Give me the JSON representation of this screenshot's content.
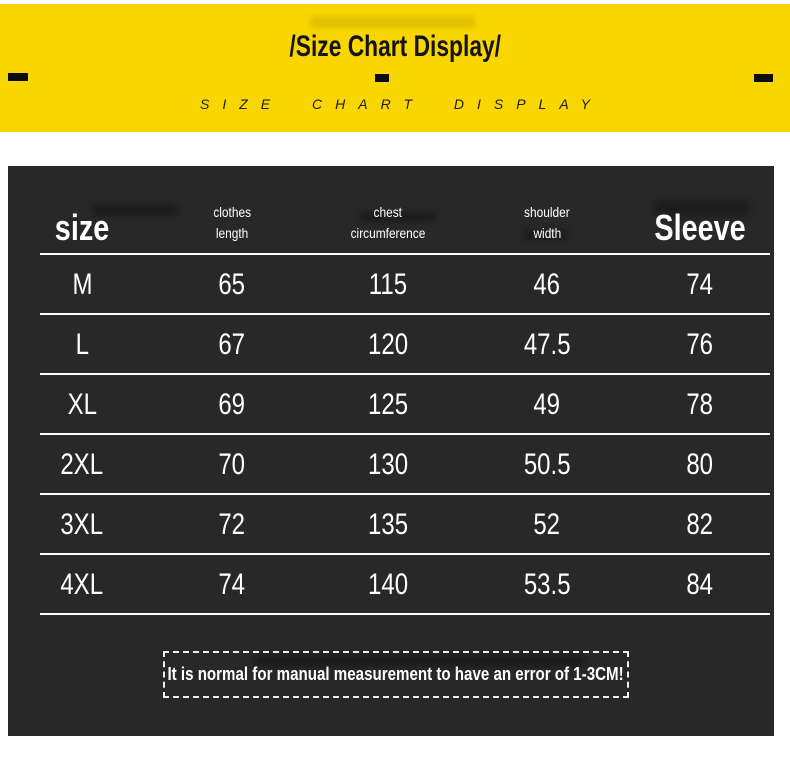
{
  "banner": {
    "title": "/Size Chart Display/",
    "subtitle": "SIZE CHART DISPLAY",
    "background_color": "#FAD601",
    "text_color": "#141414"
  },
  "table": {
    "background_color": "#282828",
    "text_color": "#FFFFFF",
    "headers": [
      [
        "size"
      ],
      [
        "clothes",
        "length"
      ],
      [
        "chest",
        "circumference"
      ],
      [
        "shoulder",
        "width"
      ],
      [
        "Sleeve"
      ]
    ],
    "rows": [
      [
        "M",
        "65",
        "115",
        "46",
        "74"
      ],
      [
        "L",
        "67",
        "120",
        "47.5",
        "76"
      ],
      [
        "XL",
        "69",
        "125",
        "49",
        "78"
      ],
      [
        "2XL",
        "70",
        "130",
        "50.5",
        "80"
      ],
      [
        "3XL",
        "72",
        "135",
        "52",
        "82"
      ],
      [
        "4XL",
        "74",
        "140",
        "53.5",
        "84"
      ]
    ],
    "note": "It is normal for manual measurement to have an error of 1-3CM!"
  },
  "chart_data": {
    "type": "table",
    "title": "/Size Chart Display/",
    "subtitle": "SIZE CHART DISPLAY",
    "columns": [
      "size",
      "clothes length",
      "chest circumference",
      "shoulder width",
      "Sleeve"
    ],
    "rows": [
      [
        "M",
        65,
        115,
        46,
        74
      ],
      [
        "L",
        67,
        120,
        47.5,
        76
      ],
      [
        "XL",
        69,
        125,
        49,
        78
      ],
      [
        "2XL",
        70,
        130,
        50.5,
        80
      ],
      [
        "3XL",
        72,
        135,
        52,
        82
      ],
      [
        "4XL",
        74,
        140,
        53.5,
        84
      ]
    ],
    "note": "It is normal for manual measurement to have an error of 1-3CM!"
  }
}
